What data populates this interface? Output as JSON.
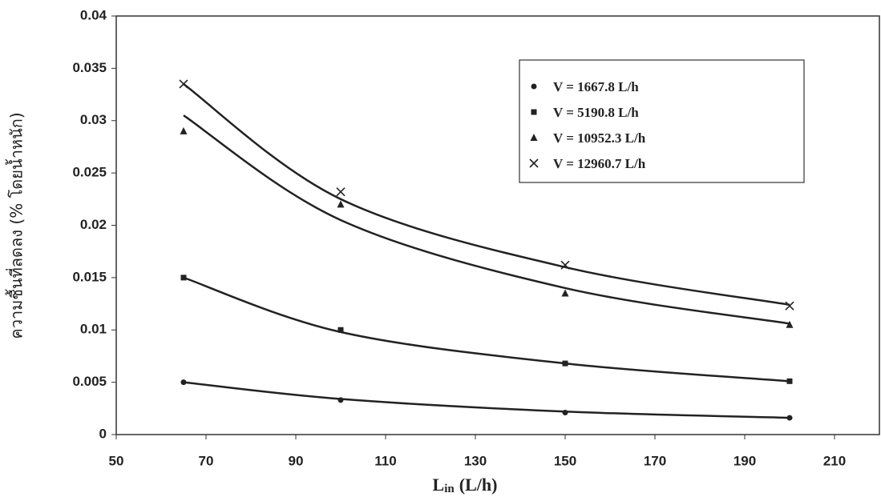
{
  "chart_data": {
    "type": "scatter",
    "xlabel": "L",
    "xlabel_sub": "in",
    "xlabel_unit": "(L/h)",
    "ylabel": "ความชื้นที่ลดลง (% โดยน้ำหนัก)",
    "x": [
      65,
      100,
      150,
      200
    ],
    "xlim": [
      50,
      220
    ],
    "xticks": [
      50,
      70,
      90,
      110,
      130,
      150,
      170,
      190,
      210
    ],
    "ylim": [
      0,
      0.04
    ],
    "yticks": [
      0,
      0.005,
      0.01,
      0.015,
      0.02,
      0.025,
      0.03,
      0.035,
      0.04
    ],
    "legend": "upper-right",
    "series": [
      {
        "name": "V = 1667.8 L/h",
        "color": "#222222",
        "marker": "circle",
        "values": [
          0.005,
          0.0033,
          0.0021,
          0.0016
        ],
        "trend_values": [
          0.005,
          0.0034,
          0.0022,
          0.0016
        ]
      },
      {
        "name": "V = 5190.8 L/h",
        "color": "#222222",
        "marker": "square",
        "values": [
          0.015,
          0.01,
          0.0068,
          0.0051
        ],
        "trend_values": [
          0.015,
          0.0098,
          0.0068,
          0.0051
        ]
      },
      {
        "name": "V = 10952.3 L/h",
        "color": "#222222",
        "marker": "triangle",
        "values": [
          0.029,
          0.022,
          0.0135,
          0.0105
        ],
        "trend_values": [
          0.0305,
          0.0205,
          0.014,
          0.0106
        ]
      },
      {
        "name": "V = 12960.7 L/h",
        "color": "#222222",
        "marker": "x",
        "values": [
          0.0335,
          0.0232,
          0.0162,
          0.0123
        ],
        "trend_values": [
          0.0335,
          0.0225,
          0.016,
          0.0124
        ]
      }
    ]
  }
}
